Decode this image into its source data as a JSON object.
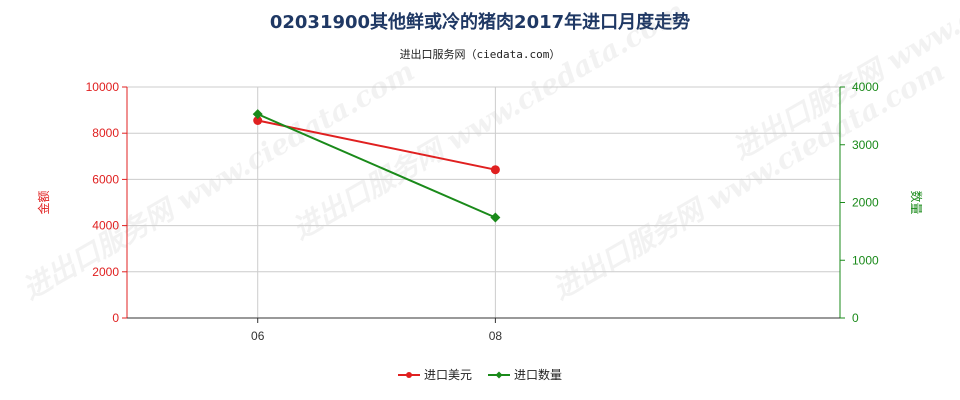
{
  "title": "02031900其他鲜或冷的猪肉2017年进口月度走势",
  "subtitle": "进出口服务网（ciedata.com）",
  "watermark": "进出口服务网 www.ciedata.com",
  "colors": {
    "left_axis": "#e02020",
    "right_axis": "#1a8a1a",
    "grid": "#cccccc"
  },
  "chart_data": {
    "type": "line",
    "categories": [
      "06",
      "08"
    ],
    "x_range": [
      4.9,
      10.9
    ],
    "left_axis": {
      "label": "金额",
      "ylim": [
        0,
        10000
      ],
      "ticks": [
        0,
        2000,
        4000,
        6000,
        8000,
        10000
      ]
    },
    "right_axis": {
      "label": "数量",
      "ylim": [
        0,
        4000
      ],
      "ticks": [
        0,
        1000,
        2000,
        3000,
        4000
      ]
    },
    "series": [
      {
        "name": "进口美元",
        "axis": "left",
        "color": "#e02020",
        "marker": "circle",
        "x": [
          6,
          8
        ],
        "values": [
          8550,
          6420
        ]
      },
      {
        "name": "进口数量",
        "axis": "right",
        "color": "#1a8a1a",
        "marker": "diamond",
        "x": [
          6,
          8
        ],
        "values": [
          3530,
          1740
        ]
      }
    ],
    "legend": "bottom-center",
    "grid": true
  }
}
